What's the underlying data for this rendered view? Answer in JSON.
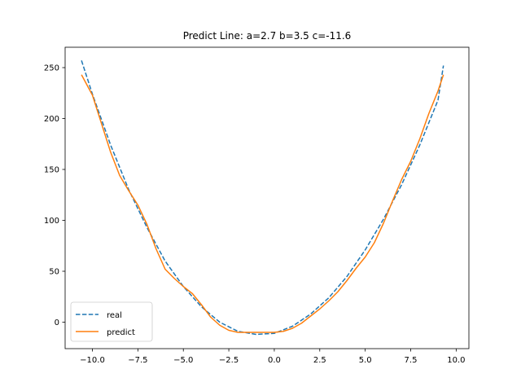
{
  "chart_data": {
    "type": "line",
    "title": "Predict Line: a=2.7 b=3.5 c=-11.6",
    "xlabel": "",
    "ylabel": "",
    "xlim": [
      -11.5,
      10.7
    ],
    "ylim": [
      -26,
      270
    ],
    "x_ticks": [
      -10.0,
      -7.5,
      -5.0,
      -2.5,
      0.0,
      2.5,
      5.0,
      7.5,
      10.0
    ],
    "x_tick_labels": [
      "−10.0",
      "−7.5",
      "−5.0",
      "−2.5",
      "0.0",
      "2.5",
      "5.0",
      "7.5",
      "10.0"
    ],
    "y_ticks": [
      0,
      50,
      100,
      150,
      200,
      250
    ],
    "y_tick_labels": [
      "0",
      "50",
      "100",
      "150",
      "200",
      "250"
    ],
    "grid": false,
    "legend_position": "lower-left",
    "series": [
      {
        "name": "real",
        "color": "#1f77b4",
        "style": "dashed",
        "x": [
          -10.6,
          -10.0,
          -9.0,
          -8.0,
          -7.0,
          -6.0,
          -5.0,
          -4.0,
          -3.0,
          -2.0,
          -1.0,
          0.0,
          1.0,
          2.0,
          3.0,
          4.0,
          5.0,
          6.0,
          7.0,
          8.0,
          9.0,
          9.3
        ],
        "y": [
          257,
          224,
          174,
          130,
          93,
          60,
          35,
          15,
          0,
          -9,
          -12,
          -11,
          -4,
          8,
          24,
          45,
          71,
          101,
          135,
          174,
          218,
          252
        ]
      },
      {
        "name": "predict",
        "color": "#ff7f0e",
        "style": "solid",
        "x": [
          -10.6,
          -10.0,
          -9.5,
          -9.0,
          -8.5,
          -8.0,
          -7.5,
          -7.0,
          -6.5,
          -6.0,
          -5.5,
          -5.0,
          -4.5,
          -4.0,
          -3.5,
          -3.0,
          -2.5,
          -2.0,
          -1.5,
          -1.0,
          -0.5,
          0.0,
          0.5,
          1.0,
          1.5,
          2.0,
          2.5,
          3.0,
          3.5,
          4.0,
          4.5,
          5.0,
          5.5,
          6.0,
          6.5,
          7.0,
          7.5,
          8.0,
          8.5,
          9.0,
          9.3
        ],
        "y": [
          243,
          223,
          195,
          167,
          144,
          129,
          115,
          96,
          72,
          52,
          43,
          35,
          28,
          17,
          5,
          -3,
          -8,
          -10,
          -10,
          -10,
          -10,
          -10,
          -9,
          -6,
          -1,
          6,
          13,
          21,
          30,
          41,
          53,
          64,
          78,
          97,
          119,
          140,
          158,
          180,
          205,
          227,
          243
        ]
      }
    ]
  }
}
